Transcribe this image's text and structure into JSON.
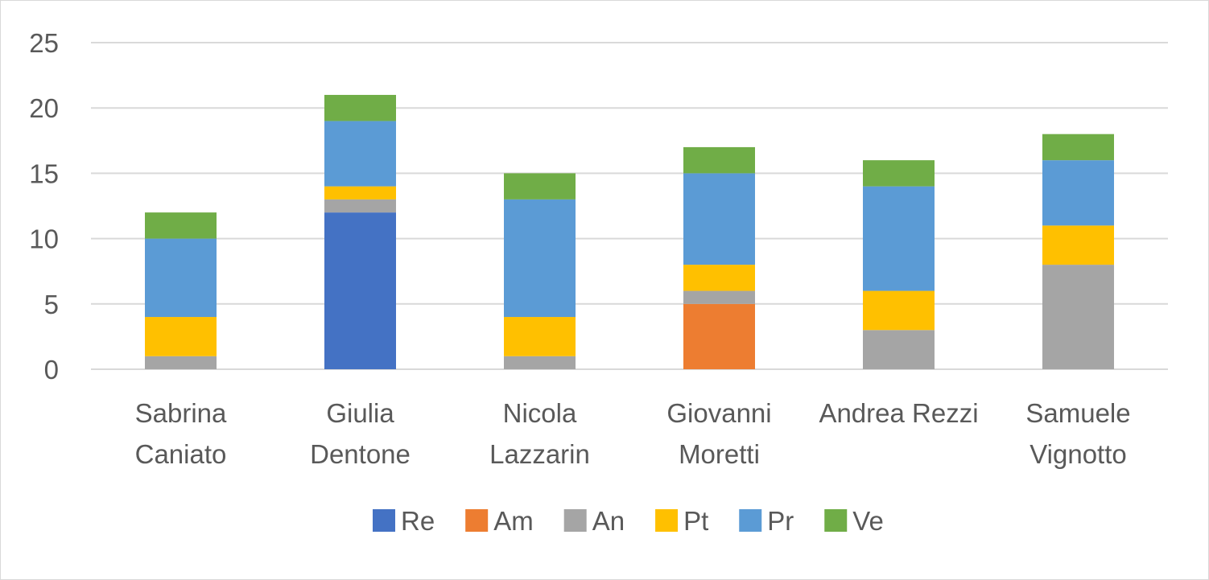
{
  "chart_data": {
    "type": "bar",
    "stacked": true,
    "title": "",
    "xlabel": "",
    "ylabel": "",
    "ylim": [
      0,
      25
    ],
    "yticks": [
      0,
      5,
      10,
      15,
      20,
      25
    ],
    "grid": true,
    "legend_position": "bottom",
    "categories": [
      [
        "Sabrina",
        "Caniato"
      ],
      [
        "Giulia",
        "Dentone"
      ],
      [
        "Nicola",
        "Lazzarin"
      ],
      [
        "Giovanni",
        "Moretti"
      ],
      [
        "Andrea Rezzi"
      ],
      [
        "Samuele",
        "Vignotto"
      ]
    ],
    "series": [
      {
        "name": "Re",
        "color": "#4472c4",
        "values": [
          0,
          12,
          0,
          0,
          0,
          0
        ]
      },
      {
        "name": "Am",
        "color": "#ed7d31",
        "values": [
          0,
          0,
          0,
          5,
          0,
          0
        ]
      },
      {
        "name": "An",
        "color": "#a5a5a5",
        "values": [
          1,
          1,
          1,
          1,
          3,
          8
        ]
      },
      {
        "name": "Pt",
        "color": "#ffc000",
        "values": [
          3,
          1,
          3,
          2,
          3,
          3
        ]
      },
      {
        "name": "Pr",
        "color": "#5b9bd5",
        "values": [
          6,
          5,
          9,
          7,
          8,
          5
        ]
      },
      {
        "name": "Ve",
        "color": "#70ad47",
        "values": [
          2,
          2,
          2,
          2,
          2,
          2
        ]
      }
    ]
  }
}
